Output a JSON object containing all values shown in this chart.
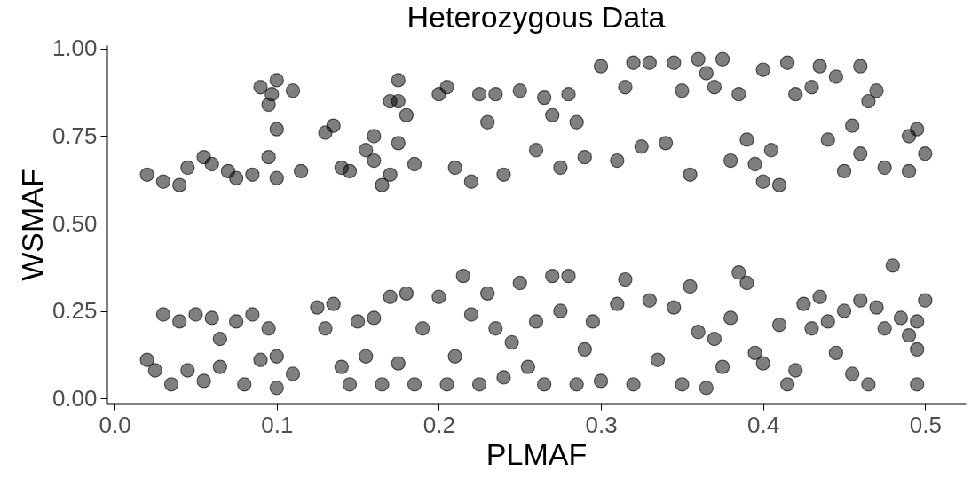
{
  "chart_data": {
    "type": "scatter",
    "title": "Heterozygous Data",
    "xlabel": "PLMAF",
    "ylabel": "WSMAF",
    "xlim": [
      -0.005,
      0.525
    ],
    "ylim": [
      -0.015,
      1.01
    ],
    "xticks": [
      {
        "value": 0,
        "label": "0.0"
      },
      0.1,
      0.2,
      0.3,
      0.4,
      0.5
    ],
    "yticks": [
      {
        "value": 0,
        "label": "0.00"
      },
      {
        "value": 0.25,
        "label": "0.25"
      },
      {
        "value": 0.5,
        "label": "0.50"
      },
      {
        "value": 0.75,
        "label": "0.75"
      },
      {
        "value": 1,
        "label": "1.00"
      }
    ],
    "grid": false,
    "series": [
      {
        "color": "#000000",
        "x": [
          0.02,
          0.03,
          0.04,
          0.045,
          0.055,
          0.06,
          0.07,
          0.075,
          0.085,
          0.09,
          0.095,
          0.1,
          0.097,
          0.11,
          0.1,
          0.095,
          0.1,
          0.115,
          0.13,
          0.135,
          0.14,
          0.145,
          0.155,
          0.16,
          0.16,
          0.165,
          0.17,
          0.17,
          0.175,
          0.175,
          0.18,
          0.175,
          0.185,
          0.2,
          0.205,
          0.21,
          0.22,
          0.225,
          0.23,
          0.235,
          0.24,
          0.25,
          0.26,
          0.265,
          0.27,
          0.275,
          0.28,
          0.285,
          0.29,
          0.3,
          0.31,
          0.315,
          0.32,
          0.325,
          0.33,
          0.34,
          0.345,
          0.35,
          0.355,
          0.36,
          0.365,
          0.37,
          0.375,
          0.38,
          0.385,
          0.39,
          0.395,
          0.4,
          0.4,
          0.405,
          0.41,
          0.415,
          0.42,
          0.43,
          0.435,
          0.44,
          0.445,
          0.45,
          0.455,
          0.46,
          0.465,
          0.47,
          0.475,
          0.49,
          0.495,
          0.5,
          0.49,
          0.46,
          0.02,
          0.025,
          0.03,
          0.035,
          0.04,
          0.045,
          0.05,
          0.055,
          0.06,
          0.065,
          0.065,
          0.075,
          0.08,
          0.085,
          0.09,
          0.095,
          0.1,
          0.1,
          0.11,
          0.125,
          0.13,
          0.135,
          0.14,
          0.145,
          0.15,
          0.155,
          0.16,
          0.165,
          0.17,
          0.175,
          0.18,
          0.185,
          0.19,
          0.2,
          0.205,
          0.21,
          0.215,
          0.22,
          0.225,
          0.23,
          0.235,
          0.24,
          0.245,
          0.25,
          0.255,
          0.26,
          0.265,
          0.27,
          0.275,
          0.28,
          0.285,
          0.29,
          0.295,
          0.3,
          0.31,
          0.315,
          0.32,
          0.33,
          0.335,
          0.345,
          0.35,
          0.355,
          0.36,
          0.365,
          0.37,
          0.375,
          0.38,
          0.385,
          0.39,
          0.395,
          0.4,
          0.41,
          0.415,
          0.42,
          0.425,
          0.43,
          0.435,
          0.44,
          0.445,
          0.45,
          0.455,
          0.46,
          0.465,
          0.47,
          0.475,
          0.48,
          0.485,
          0.49,
          0.495,
          0.495,
          0.495,
          0.5
        ],
        "values": [
          0.64,
          0.62,
          0.61,
          0.66,
          0.69,
          0.67,
          0.65,
          0.63,
          0.64,
          0.89,
          0.84,
          0.91,
          0.87,
          0.88,
          0.77,
          0.69,
          0.63,
          0.65,
          0.76,
          0.78,
          0.66,
          0.65,
          0.71,
          0.75,
          0.68,
          0.61,
          0.64,
          0.85,
          0.91,
          0.85,
          0.81,
          0.73,
          0.67,
          0.87,
          0.89,
          0.66,
          0.62,
          0.87,
          0.79,
          0.87,
          0.64,
          0.88,
          0.71,
          0.86,
          0.81,
          0.66,
          0.87,
          0.79,
          0.69,
          0.95,
          0.68,
          0.89,
          0.96,
          0.72,
          0.96,
          0.73,
          0.96,
          0.88,
          0.64,
          0.97,
          0.93,
          0.89,
          0.97,
          0.68,
          0.87,
          0.74,
          0.67,
          0.94,
          0.62,
          0.71,
          0.61,
          0.96,
          0.87,
          0.89,
          0.95,
          0.74,
          0.92,
          0.65,
          0.78,
          0.95,
          0.85,
          0.88,
          0.66,
          0.75,
          0.77,
          0.7,
          0.65,
          0.7,
          0.11,
          0.08,
          0.24,
          0.04,
          0.22,
          0.08,
          0.24,
          0.05,
          0.23,
          0.17,
          0.09,
          0.22,
          0.04,
          0.24,
          0.11,
          0.2,
          0.03,
          0.12,
          0.07,
          0.26,
          0.2,
          0.27,
          0.09,
          0.04,
          0.22,
          0.12,
          0.23,
          0.04,
          0.29,
          0.1,
          0.3,
          0.04,
          0.2,
          0.29,
          0.04,
          0.12,
          0.35,
          0.24,
          0.04,
          0.3,
          0.2,
          0.06,
          0.16,
          0.33,
          0.09,
          0.22,
          0.04,
          0.35,
          0.25,
          0.35,
          0.04,
          0.14,
          0.22,
          0.05,
          0.27,
          0.34,
          0.04,
          0.28,
          0.11,
          0.26,
          0.04,
          0.32,
          0.19,
          0.03,
          0.17,
          0.09,
          0.23,
          0.36,
          0.33,
          0.13,
          0.1,
          0.21,
          0.04,
          0.08,
          0.27,
          0.2,
          0.29,
          0.22,
          0.13,
          0.25,
          0.07,
          0.28,
          0.04,
          0.26,
          0.2,
          0.38,
          0.23,
          0.18,
          0.22,
          0.14,
          0.04,
          0.28
        ]
      }
    ]
  }
}
